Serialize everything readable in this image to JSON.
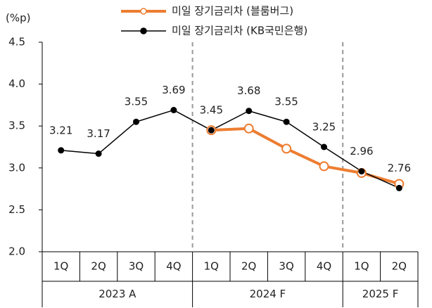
{
  "chart_data": {
    "type": "line",
    "y_label": "(%p)",
    "categories": [
      "1Q",
      "2Q",
      "3Q",
      "4Q",
      "1Q",
      "2Q",
      "3Q",
      "4Q",
      "1Q",
      "2Q"
    ],
    "groups": [
      {
        "label": "2023 A",
        "span": 4
      },
      {
        "label": "2024 F",
        "span": 4
      },
      {
        "label": "2025 F",
        "span": 2
      }
    ],
    "series": [
      {
        "name": "미일 장기금리차 (블룸버그)",
        "color": "#ed7d31",
        "marker": "hollow",
        "values": [
          null,
          null,
          null,
          null,
          3.45,
          3.47,
          3.23,
          3.02,
          2.94,
          2.81
        ]
      },
      {
        "name": "미일 장기금리차 (KB국민은행)",
        "color": "#000000",
        "marker": "filled",
        "values": [
          3.21,
          3.17,
          3.55,
          3.69,
          3.45,
          3.68,
          3.55,
          3.25,
          2.96,
          2.76
        ],
        "show_labels": true
      }
    ],
    "ylim": [
      2.0,
      4.5
    ],
    "yticks": [
      {
        "value": 2.0,
        "label": "2.0"
      },
      2.5,
      {
        "value": 3.0,
        "label": "3.0"
      },
      3.5,
      {
        "value": 4.0,
        "label": "4.0"
      },
      4.5
    ],
    "group_separators": "dashed"
  }
}
